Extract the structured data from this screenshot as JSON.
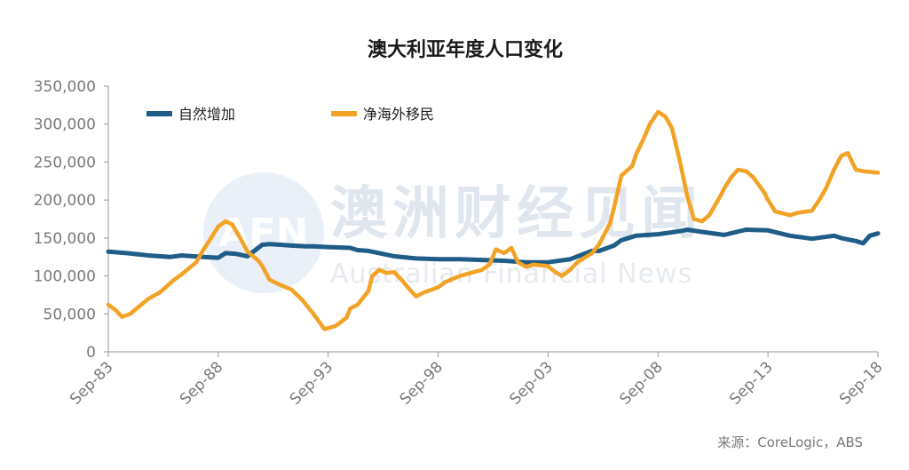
{
  "watermark": {
    "logo": "AFN",
    "cn": "澳洲财经见闻",
    "en": "Australian Financial News"
  },
  "source": "来源：CoreLogic，ABS",
  "colors": {
    "natural_increase": "#1f5c87",
    "net_overseas_migration": "#f2a224",
    "axis": "#999999",
    "watermark_circle": "#e9f0f7"
  },
  "chart_data": {
    "type": "line",
    "title": "澳大利亚年度人口变化",
    "xlabel": "",
    "ylabel": "",
    "xlim": [
      1983.67,
      2018.67
    ],
    "ylim": [
      0,
      350000
    ],
    "y_ticks": [
      0,
      50000,
      100000,
      150000,
      200000,
      250000,
      300000,
      350000
    ],
    "y_tick_labels": [
      "0",
      "50,000",
      "100,000",
      "150,000",
      "200,000",
      "250,000",
      "300,000",
      "350,000"
    ],
    "x_ticks": [
      1983.67,
      1988.67,
      1993.67,
      1998.67,
      2003.67,
      2008.67,
      2013.67,
      2018.67
    ],
    "x_tick_labels": [
      "Sep-83",
      "Sep-88",
      "Sep-93",
      "Sep-98",
      "Sep-03",
      "Sep-08",
      "Sep-13",
      "Sep-18"
    ],
    "grid": false,
    "legend_position": "top-left",
    "series": [
      {
        "name": "自然增加",
        "points": [
          [
            1983.67,
            132000
          ],
          [
            1984.5,
            130000
          ],
          [
            1985.5,
            127000
          ],
          [
            1986.5,
            125000
          ],
          [
            1987.0,
            127000
          ],
          [
            1987.5,
            126000
          ],
          [
            1988.0,
            125000
          ],
          [
            1988.67,
            124000
          ],
          [
            1989.0,
            130000
          ],
          [
            1989.5,
            129000
          ],
          [
            1990.0,
            126000
          ],
          [
            1990.67,
            141000
          ],
          [
            1991.0,
            142000
          ],
          [
            1991.5,
            141000
          ],
          [
            1992.0,
            140000
          ],
          [
            1992.67,
            139000
          ],
          [
            1993.0,
            139000
          ],
          [
            1993.67,
            138000
          ],
          [
            1994.67,
            137000
          ],
          [
            1995.0,
            134000
          ],
          [
            1995.5,
            133000
          ],
          [
            1996.0,
            130000
          ],
          [
            1996.67,
            126000
          ],
          [
            1997.0,
            125000
          ],
          [
            1997.67,
            123000
          ],
          [
            1998.67,
            122000
          ],
          [
            1999.67,
            122000
          ],
          [
            2000.67,
            121000
          ],
          [
            2001.67,
            120000
          ],
          [
            2002.67,
            118000
          ],
          [
            2003.67,
            118000
          ],
          [
            2004.67,
            122000
          ],
          [
            2005.67,
            133000
          ],
          [
            2006.0,
            133000
          ],
          [
            2006.67,
            140000
          ],
          [
            2007.0,
            147000
          ],
          [
            2007.67,
            153000
          ],
          [
            2008.67,
            155000
          ],
          [
            2009.67,
            159000
          ],
          [
            2010.0,
            161000
          ],
          [
            2010.67,
            158000
          ],
          [
            2011.67,
            154000
          ],
          [
            2012.67,
            161000
          ],
          [
            2013.67,
            160000
          ],
          [
            2014.67,
            153000
          ],
          [
            2015.67,
            149000
          ],
          [
            2016.67,
            153000
          ],
          [
            2017.0,
            150000
          ],
          [
            2017.67,
            146000
          ],
          [
            2018.0,
            143000
          ],
          [
            2018.3,
            153000
          ],
          [
            2018.67,
            156000
          ]
        ]
      },
      {
        "name": "净海外移民",
        "points": [
          [
            1983.67,
            62000
          ],
          [
            1984.0,
            55000
          ],
          [
            1984.3,
            46000
          ],
          [
            1984.67,
            50000
          ],
          [
            1985.0,
            58000
          ],
          [
            1985.5,
            70000
          ],
          [
            1986.0,
            78000
          ],
          [
            1986.67,
            95000
          ],
          [
            1987.0,
            102000
          ],
          [
            1987.67,
            118000
          ],
          [
            1988.0,
            135000
          ],
          [
            1988.3,
            148000
          ],
          [
            1988.67,
            165000
          ],
          [
            1989.0,
            172000
          ],
          [
            1989.3,
            168000
          ],
          [
            1989.67,
            150000
          ],
          [
            1990.0,
            132000
          ],
          [
            1990.5,
            120000
          ],
          [
            1990.67,
            113000
          ],
          [
            1991.0,
            95000
          ],
          [
            1991.5,
            88000
          ],
          [
            1992.0,
            82000
          ],
          [
            1992.5,
            68000
          ],
          [
            1993.0,
            50000
          ],
          [
            1993.5,
            30000
          ],
          [
            1994.0,
            34000
          ],
          [
            1994.5,
            45000
          ],
          [
            1994.67,
            57000
          ],
          [
            1995.0,
            62000
          ],
          [
            1995.5,
            80000
          ],
          [
            1995.67,
            100000
          ],
          [
            1996.0,
            108000
          ],
          [
            1996.3,
            104000
          ],
          [
            1996.67,
            105000
          ],
          [
            1997.0,
            95000
          ],
          [
            1997.5,
            78000
          ],
          [
            1997.67,
            73000
          ],
          [
            1998.0,
            78000
          ],
          [
            1998.67,
            85000
          ],
          [
            1999.0,
            92000
          ],
          [
            1999.67,
            100000
          ],
          [
            2000.67,
            108000
          ],
          [
            2001.0,
            115000
          ],
          [
            2001.3,
            135000
          ],
          [
            2001.67,
            130000
          ],
          [
            2002.0,
            137000
          ],
          [
            2002.3,
            118000
          ],
          [
            2002.67,
            112000
          ],
          [
            2003.0,
            115000
          ],
          [
            2003.67,
            113000
          ],
          [
            2004.0,
            105000
          ],
          [
            2004.3,
            100000
          ],
          [
            2004.67,
            108000
          ],
          [
            2005.0,
            118000
          ],
          [
            2005.67,
            130000
          ],
          [
            2006.0,
            142000
          ],
          [
            2006.5,
            170000
          ],
          [
            2006.67,
            190000
          ],
          [
            2007.0,
            232000
          ],
          [
            2007.5,
            245000
          ],
          [
            2007.67,
            260000
          ],
          [
            2008.0,
            280000
          ],
          [
            2008.3,
            300000
          ],
          [
            2008.67,
            316000
          ],
          [
            2009.0,
            310000
          ],
          [
            2009.3,
            295000
          ],
          [
            2009.67,
            250000
          ],
          [
            2010.0,
            205000
          ],
          [
            2010.3,
            175000
          ],
          [
            2010.67,
            172000
          ],
          [
            2011.0,
            180000
          ],
          [
            2011.5,
            205000
          ],
          [
            2011.67,
            215000
          ],
          [
            2012.0,
            230000
          ],
          [
            2012.3,
            240000
          ],
          [
            2012.67,
            238000
          ],
          [
            2013.0,
            230000
          ],
          [
            2013.5,
            210000
          ],
          [
            2013.67,
            200000
          ],
          [
            2014.0,
            185000
          ],
          [
            2014.67,
            180000
          ],
          [
            2015.0,
            183000
          ],
          [
            2015.67,
            186000
          ],
          [
            2016.0,
            200000
          ],
          [
            2016.3,
            215000
          ],
          [
            2016.67,
            240000
          ],
          [
            2017.0,
            258000
          ],
          [
            2017.3,
            262000
          ],
          [
            2017.67,
            240000
          ],
          [
            2018.0,
            238000
          ],
          [
            2018.67,
            236000
          ]
        ]
      }
    ]
  }
}
